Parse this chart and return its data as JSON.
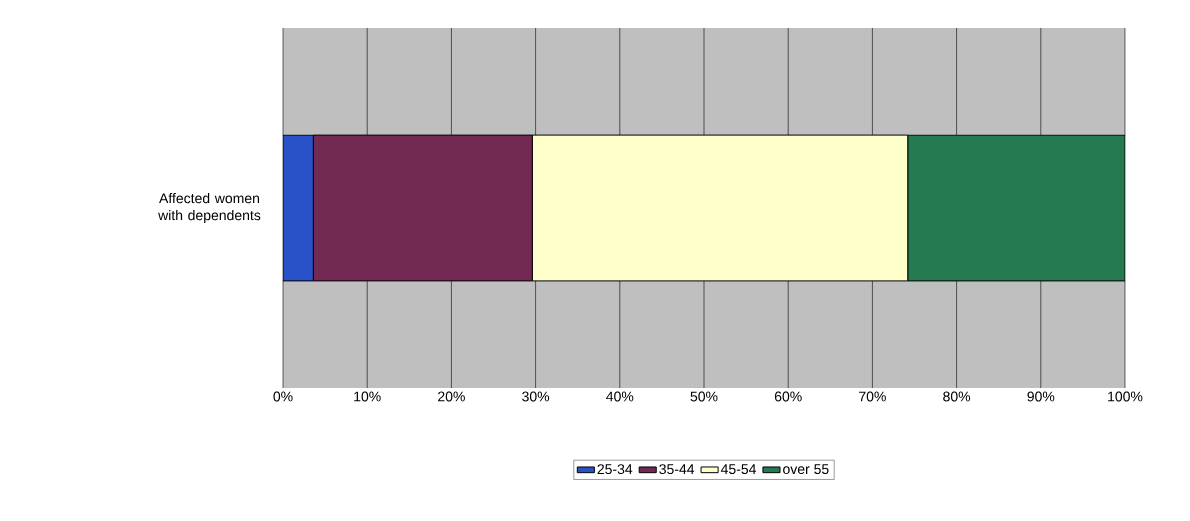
{
  "chart_data": {
    "type": "bar",
    "orientation": "horizontal",
    "stacked": true,
    "categories": [
      "Affected women with dependents"
    ],
    "series": [
      {
        "name": "25-34",
        "color": "#2a52c8",
        "values": [
          3.6
        ]
      },
      {
        "name": "35-44",
        "color": "#722a53",
        "values": [
          26.0
        ]
      },
      {
        "name": "45-54",
        "color": "#ffffcc",
        "values": [
          44.6
        ]
      },
      {
        "name": "over 55",
        "color": "#267a52",
        "values": [
          25.8
        ]
      }
    ],
    "xlim": [
      0,
      100
    ],
    "xticks": [
      {
        "value": 0,
        "label": "0%"
      },
      {
        "value": 10,
        "label": "10%"
      },
      {
        "value": 20,
        "label": "20%"
      },
      {
        "value": 30,
        "label": "30%"
      },
      {
        "value": 40,
        "label": "40%"
      },
      {
        "value": 50,
        "label": "50%"
      },
      {
        "value": 60,
        "label": "60%"
      },
      {
        "value": 70,
        "label": "70%"
      },
      {
        "value": 80,
        "label": "80%"
      },
      {
        "value": 90,
        "label": "90%"
      },
      {
        "value": 100,
        "label": "100%"
      }
    ],
    "grid": "x",
    "legend": "bottom"
  }
}
